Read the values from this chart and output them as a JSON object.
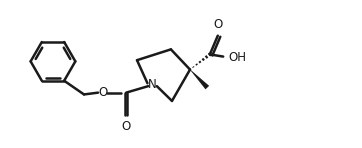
{
  "background": "#ffffff",
  "line_color": "#1a1a1a",
  "line_width": 1.8,
  "figsize": [
    3.62,
    1.48
  ],
  "dpi": 100,
  "xlim": [
    0,
    10
  ],
  "ylim": [
    0,
    4
  ]
}
